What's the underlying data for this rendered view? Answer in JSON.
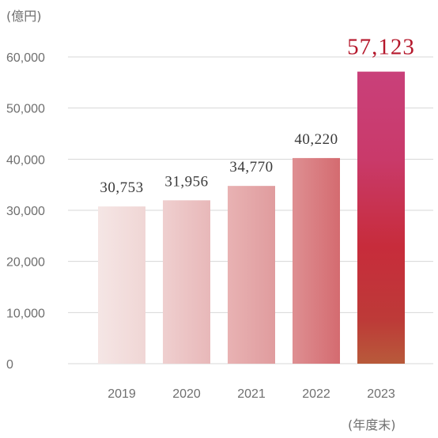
{
  "chart_data": {
    "type": "bar",
    "title": "",
    "y_unit_label": "(億円)",
    "x_unit_label": "(年度末)",
    "categories": [
      "2019",
      "2020",
      "2021",
      "2022",
      "2023"
    ],
    "values": [
      30753,
      31956,
      34770,
      40220,
      57123
    ],
    "value_labels": [
      "30,753",
      "31,956",
      "34,770",
      "40,220",
      "57,123"
    ],
    "ylim": [
      0,
      60000
    ],
    "yticks": [
      0,
      10000,
      20000,
      30000,
      40000,
      50000,
      60000
    ],
    "ytick_labels": [
      "0",
      "10,000",
      "20,000",
      "30,000",
      "40,000",
      "50,000",
      "60,000"
    ],
    "grid": true,
    "highlight_index": 4,
    "colors": {
      "bar_start": "#f3e0df",
      "bar_end": "#d46b70",
      "highlight_top": "#c9407a",
      "highlight_mid": "#c72c3b",
      "highlight_bottom": "#b85a3a",
      "highlight_label": "#b5172b",
      "grid": "#d7d7d7",
      "text": "#6f6f6f"
    }
  }
}
